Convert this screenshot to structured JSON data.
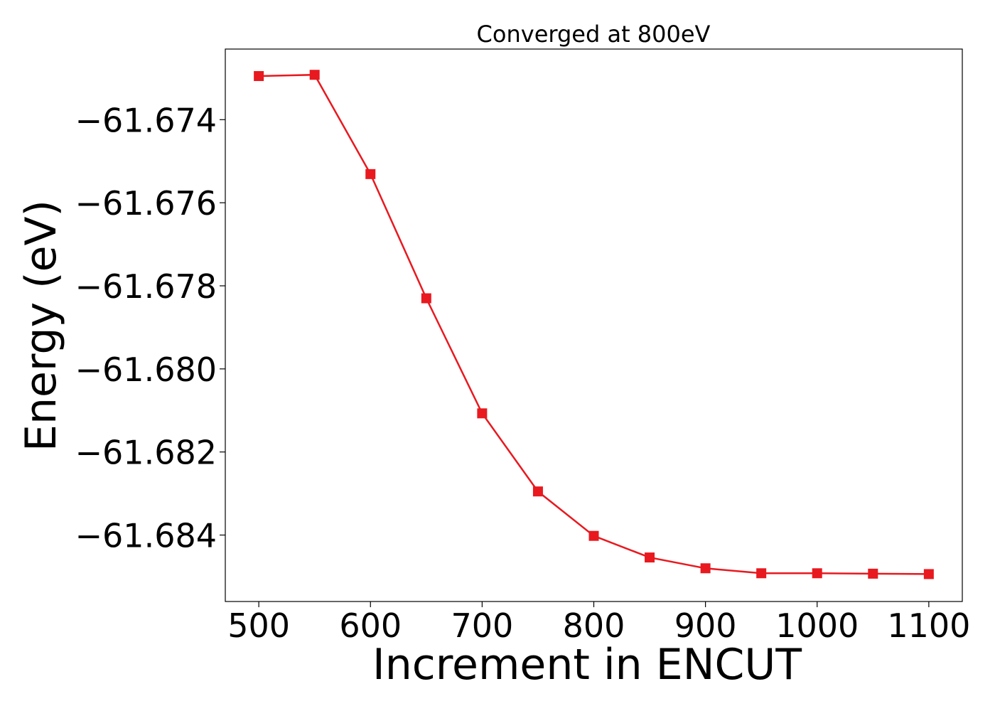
{
  "chart_data": {
    "type": "line",
    "title": "Converged at 800eV",
    "xlabel": "Increment in ENCUT",
    "ylabel": "Energy (eV)",
    "xlim": [
      470,
      1130
    ],
    "ylim": [
      -61.6856,
      -61.6723
    ],
    "xticks": [
      500,
      600,
      700,
      800,
      900,
      1000,
      1100
    ],
    "yticks": [
      -61.674,
      -61.676,
      -61.678,
      -61.68,
      -61.682,
      -61.684
    ],
    "ytick_labels": [
      "−61.674",
      "−61.676",
      "−61.678",
      "−61.680",
      "−61.682",
      "−61.684"
    ],
    "grid": false,
    "series": [
      {
        "color": "#e8191f",
        "marker": "square",
        "x": [
          500,
          550,
          600,
          650,
          700,
          750,
          800,
          850,
          900,
          950,
          1000,
          1050,
          1100
        ],
        "y": [
          -61.67295,
          -61.67292,
          -61.67531,
          -61.6783,
          -61.68107,
          -61.68295,
          -61.68402,
          -61.68454,
          -61.6848,
          -61.68492,
          -61.68492,
          -61.68493,
          -61.68494
        ]
      }
    ]
  }
}
